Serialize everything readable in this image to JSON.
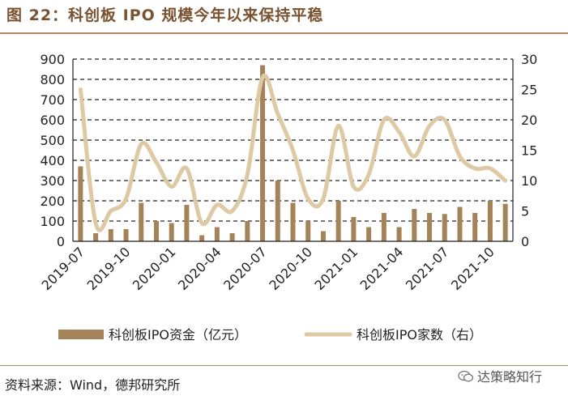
{
  "header": {
    "title": "图 22：科创板 IPO 规模今年以来保持平稳"
  },
  "footer": {
    "source": "资料来源：Wind，德邦研究所",
    "watermark": "达策略知行",
    "watermark_icon": "wechat-icon"
  },
  "colors": {
    "bar": "#a58359",
    "line": "#ddc9a4",
    "accent": "#7a5230"
  },
  "chart_data": {
    "type": "bar+line",
    "title": "科创板 IPO 规模今年以来保持平稳",
    "categories": [
      "2019-07",
      "2019-08",
      "2019-09",
      "2019-10",
      "2019-11",
      "2019-12",
      "2020-01",
      "2020-02",
      "2020-03",
      "2020-04",
      "2020-05",
      "2020-06",
      "2020-07",
      "2020-08",
      "2020-09",
      "2020-10",
      "2020-11",
      "2020-12",
      "2021-01",
      "2021-02",
      "2021-03",
      "2021-04",
      "2021-05",
      "2021-06",
      "2021-07",
      "2021-08",
      "2021-09",
      "2021-10",
      "2021-11"
    ],
    "x_tick_labels": [
      "2019-07",
      "2019-10",
      "2020-01",
      "2020-04",
      "2020-07",
      "2020-10",
      "2021-01",
      "2021-04",
      "2021-07",
      "2021-10"
    ],
    "y_left": {
      "min": 0,
      "max": 900,
      "step": 100,
      "ticks": [
        "0",
        "100",
        "200",
        "300",
        "400",
        "500",
        "600",
        "700",
        "800",
        "900"
      ]
    },
    "y_right": {
      "min": 0,
      "max": 30,
      "step": 5,
      "ticks": [
        "0",
        "5",
        "10",
        "15",
        "20",
        "25",
        "30"
      ]
    },
    "grid": "horizontal dashed",
    "legend_position": "bottom-center",
    "series": [
      {
        "name": "科创板IPO资金（亿元）",
        "type": "bar",
        "axis": "left",
        "values": [
          370,
          40,
          60,
          60,
          190,
          100,
          90,
          180,
          30,
          70,
          40,
          100,
          870,
          300,
          190,
          100,
          50,
          200,
          120,
          70,
          140,
          70,
          160,
          140,
          135,
          170,
          140,
          200,
          185
        ]
      },
      {
        "name": "科创板IPO家数（右）",
        "type": "line",
        "axis": "right",
        "values": [
          25,
          3,
          5,
          7,
          16,
          13,
          9,
          12,
          3,
          6,
          5,
          11,
          27,
          21,
          15,
          7,
          7,
          19,
          9,
          11,
          20,
          18,
          14,
          19,
          20,
          14,
          12,
          12,
          10
        ]
      }
    ]
  }
}
